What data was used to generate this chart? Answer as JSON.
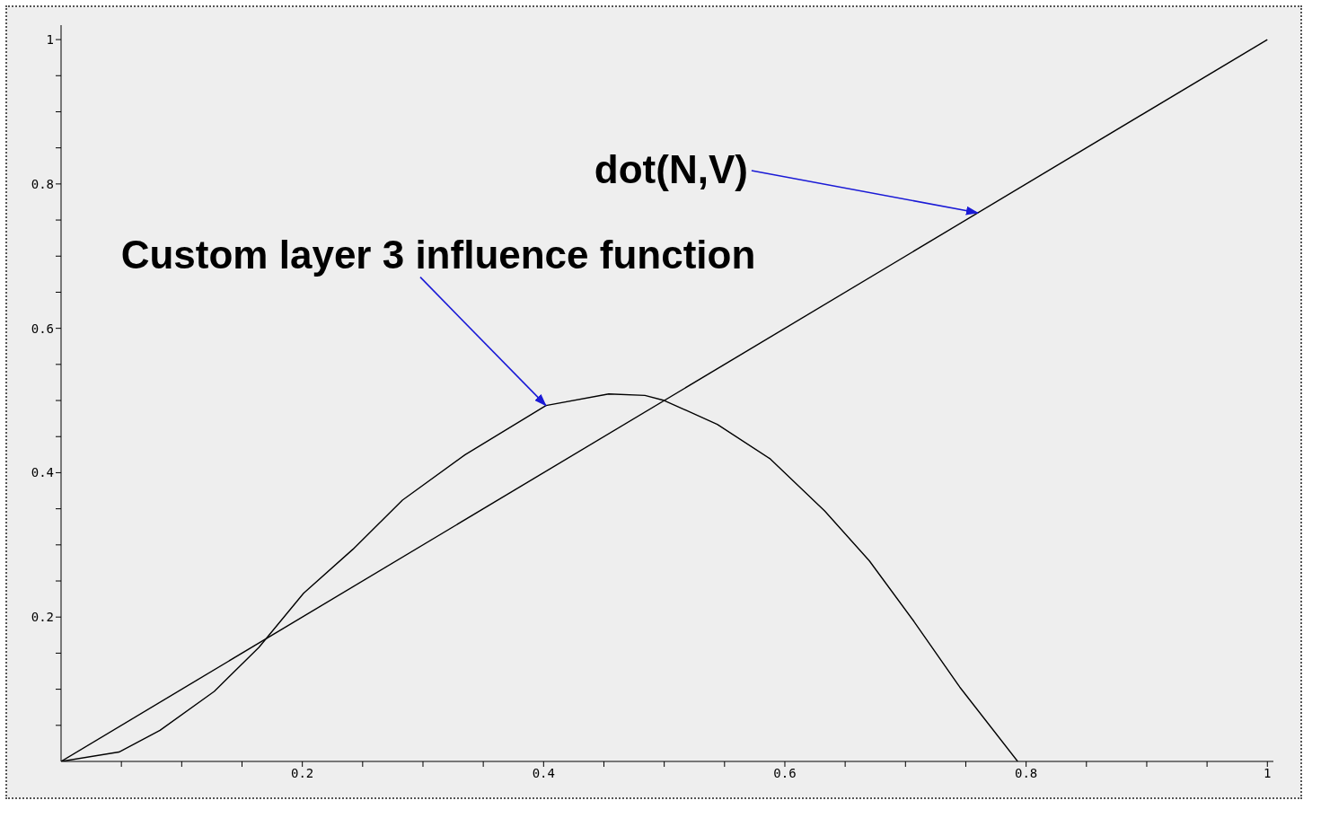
{
  "chart_data": {
    "type": "line",
    "xlim": [
      0,
      1.005
    ],
    "ylim": [
      0,
      1.02
    ],
    "xticks": [
      {
        "value": 0.05,
        "label": null
      },
      {
        "value": 0.1,
        "label": null
      },
      {
        "value": 0.15,
        "label": null
      },
      0.2,
      {
        "value": 0.25,
        "label": null
      },
      {
        "value": 0.3,
        "label": null
      },
      {
        "value": 0.35,
        "label": null
      },
      0.4,
      {
        "value": 0.45,
        "label": null
      },
      {
        "value": 0.5,
        "label": null
      },
      {
        "value": 0.55,
        "label": null
      },
      0.6,
      {
        "value": 0.65,
        "label": null
      },
      {
        "value": 0.7,
        "label": null
      },
      {
        "value": 0.75,
        "label": null
      },
      0.8,
      {
        "value": 0.85,
        "label": null
      },
      {
        "value": 0.9,
        "label": null
      },
      {
        "value": 0.95,
        "label": null
      },
      1
    ],
    "yticks": [
      {
        "value": 0.05,
        "label": null
      },
      {
        "value": 0.1,
        "label": null
      },
      {
        "value": 0.15,
        "label": null
      },
      0.2,
      {
        "value": 0.25,
        "label": null
      },
      {
        "value": 0.3,
        "label": null
      },
      {
        "value": 0.35,
        "label": null
      },
      0.4,
      {
        "value": 0.45,
        "label": null
      },
      {
        "value": 0.5,
        "label": null
      },
      {
        "value": 0.55,
        "label": null
      },
      0.6,
      {
        "value": 0.65,
        "label": null
      },
      {
        "value": 0.7,
        "label": null
      },
      {
        "value": 0.75,
        "label": null
      },
      0.8,
      {
        "value": 0.85,
        "label": null
      },
      {
        "value": 0.9,
        "label": null
      },
      {
        "value": 0.95,
        "label": null
      },
      1
    ],
    "grid": false,
    "marker": "none",
    "line_style": "solid",
    "series": [
      {
        "color": "#000000",
        "x": [
          0,
          1
        ],
        "values": [
          0,
          1
        ]
      },
      {
        "color": "#000000",
        "x": [
          0,
          0.048,
          0.082,
          0.127,
          0.164,
          0.201,
          0.242,
          0.283,
          0.335,
          0.402,
          0.454,
          0.484,
          0.5,
          0.544,
          0.588,
          0.633,
          0.67,
          0.707,
          0.745,
          0.793
        ],
        "values": [
          0,
          0.013,
          0.043,
          0.097,
          0.158,
          0.233,
          0.294,
          0.362,
          0.425,
          0.493,
          0.509,
          0.507,
          0.5,
          0.467,
          0.419,
          0.347,
          0.278,
          0.194,
          0.103,
          0
        ]
      }
    ],
    "annotations": [
      {
        "text": "dot(N,V)",
        "x": 0.76,
        "y": 0.76
      },
      {
        "text": "Custom layer 3 influence function",
        "x": 0.402,
        "y": 0.493
      }
    ]
  }
}
